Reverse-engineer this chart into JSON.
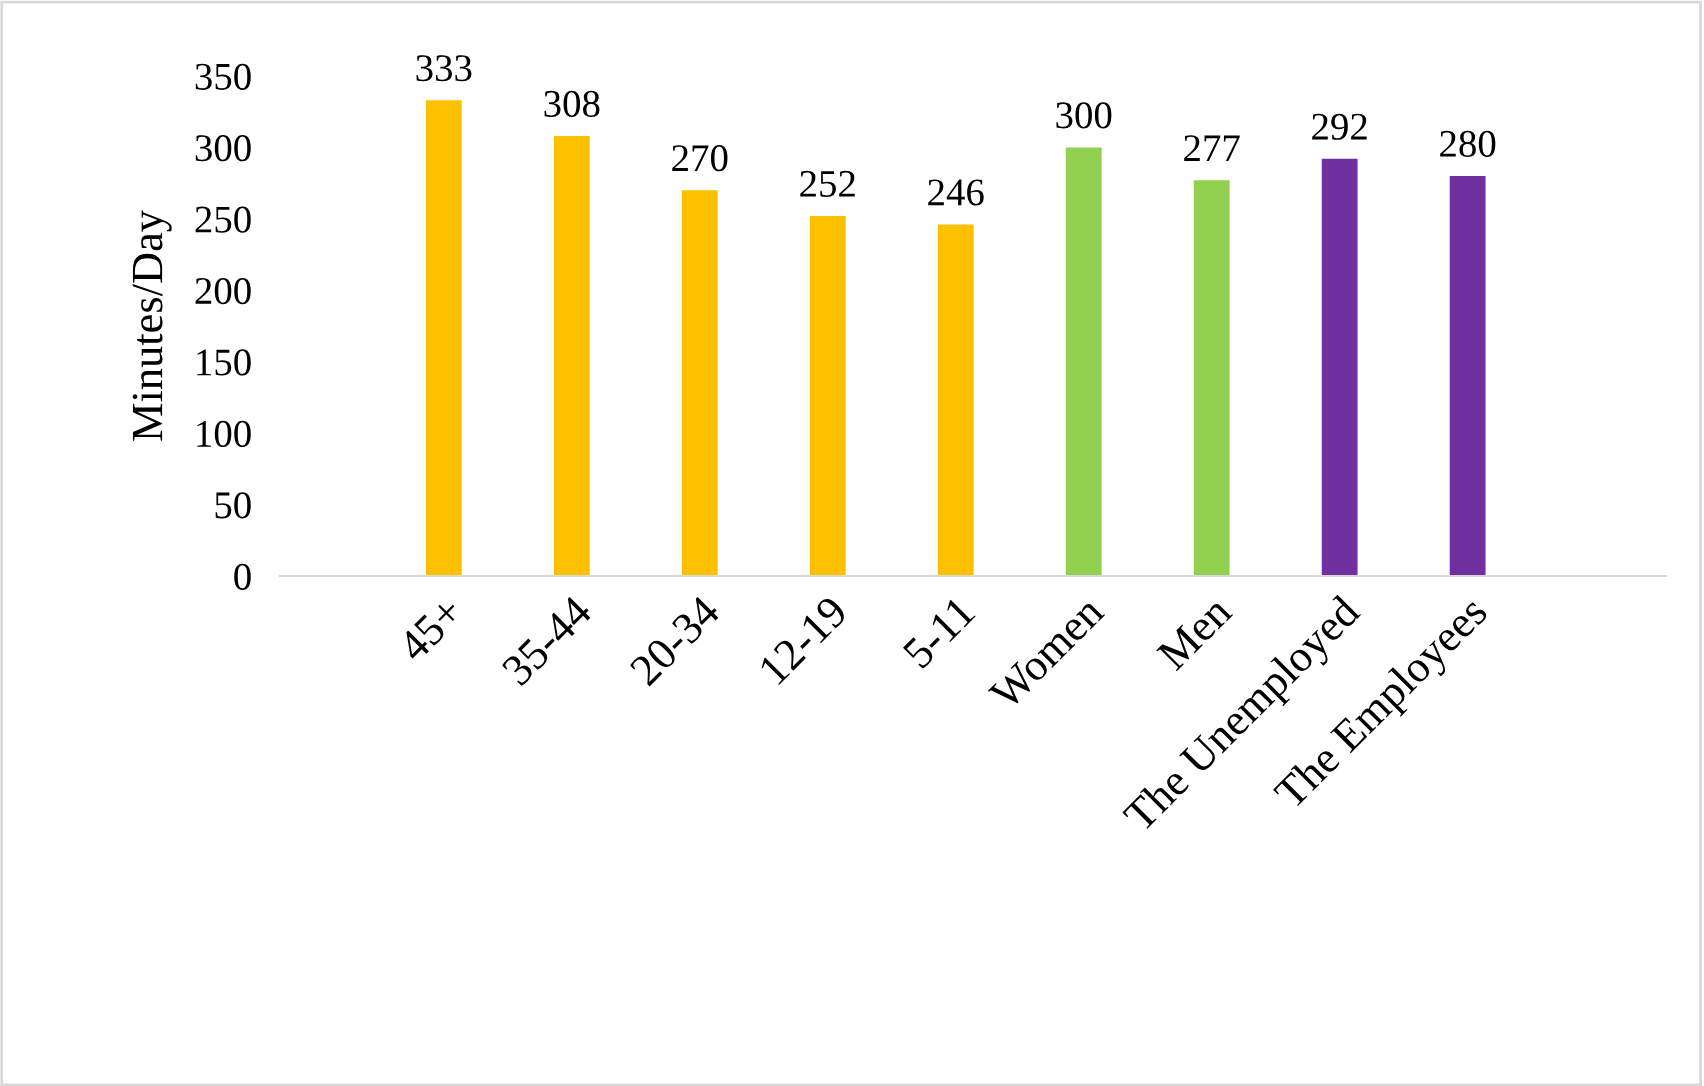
{
  "chart_data": {
    "type": "bar",
    "ylabel": "Minutes/Day",
    "categories": [
      "45+",
      "35-44",
      "20-34",
      "12-19",
      "5-11",
      "Women",
      "Men",
      "The Unemployed",
      "The Employees"
    ],
    "values": [
      333,
      308,
      270,
      252,
      246,
      300,
      277,
      292,
      280
    ],
    "colors": [
      "#ffc000",
      "#ffc000",
      "#ffc000",
      "#ffc000",
      "#ffc000",
      "#92d050",
      "#92d050",
      "#7030a0",
      "#7030a0"
    ],
    "ylim": [
      0,
      350
    ],
    "yticks": [
      0,
      50,
      100,
      150,
      200,
      250,
      300,
      350
    ],
    "data_labels": true,
    "grid": false,
    "legend": false
  }
}
